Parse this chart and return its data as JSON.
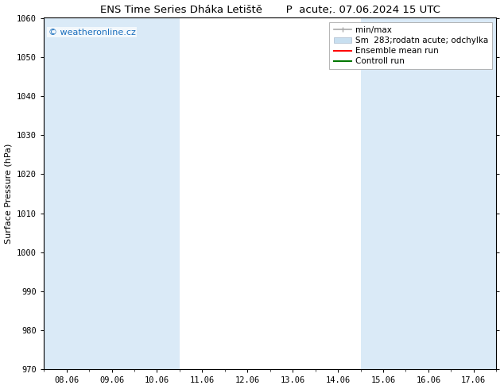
{
  "title": "ENS Time Series Dháka Letiště       P  acute;. 07.06.2024 15 UTC",
  "ylabel": "Surface Pressure (hPa)",
  "ylim": [
    970,
    1060
  ],
  "yticks": [
    970,
    980,
    990,
    1000,
    1010,
    1020,
    1030,
    1040,
    1050,
    1060
  ],
  "xtick_labels": [
    "08.06",
    "09.06",
    "10.06",
    "11.06",
    "12.06",
    "13.06",
    "14.06",
    "15.06",
    "16.06",
    "17.06"
  ],
  "watermark": "© weatheronline.cz",
  "watermark_color": "#1a6fbd",
  "bg_color": "#ffffff",
  "plot_bg_color": "#ffffff",
  "shaded_color": "#daeaf7",
  "shaded_indices": [
    0,
    1,
    2,
    7,
    8,
    9
  ],
  "legend_entries": [
    {
      "label": "min/max",
      "color": "#aaaaaa",
      "style": "minmax"
    },
    {
      "label": "Sm  283;rodatn acute; odchylka",
      "color": "#c8dff0",
      "style": "band"
    },
    {
      "label": "Ensemble mean run",
      "color": "#ff0000",
      "style": "line"
    },
    {
      "label": "Controll run",
      "color": "#007700",
      "style": "line"
    }
  ],
  "title_fontsize": 9.5,
  "label_fontsize": 8,
  "tick_fontsize": 7.5,
  "legend_fontsize": 7.5
}
